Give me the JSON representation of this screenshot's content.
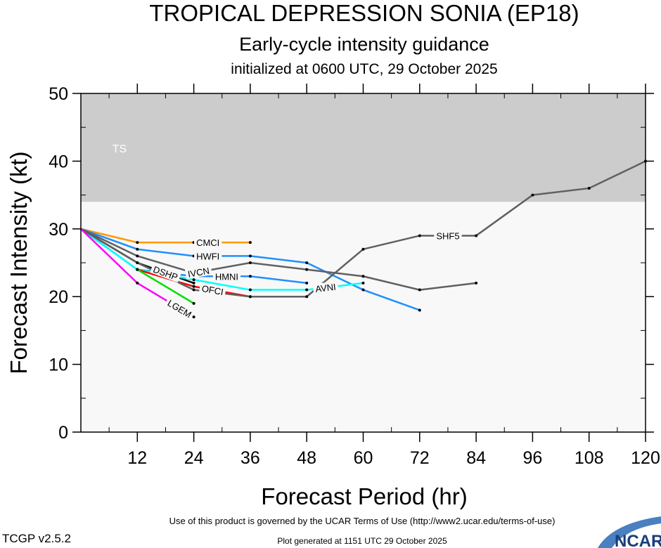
{
  "header": {
    "title": "TROPICAL DEPRESSION SONIA (EP18)",
    "subtitle": "Early-cycle intensity guidance",
    "init": "initialized at 0600 UTC, 29 October 2025"
  },
  "footer": {
    "terms": "Use of this product is governed by the UCAR Terms of Use (http://www2.ucar.edu/terms-of-use)",
    "version": "TCGP v2.5.2",
    "generated": "Plot generated at 1151 UTC   29 October 2025",
    "logo": "NCAR"
  },
  "chart_data": {
    "type": "line",
    "xlabel": "Forecast Period (hr)",
    "ylabel": "Forecast Intensity (kt)",
    "xlim": [
      0,
      120
    ],
    "ylim": [
      0,
      50
    ],
    "xticks": [
      12,
      24,
      36,
      48,
      60,
      72,
      84,
      96,
      108,
      120
    ],
    "yticks": [
      0,
      10,
      20,
      30,
      40,
      50
    ],
    "bands": [
      {
        "label": "TS",
        "from": 34,
        "to": 50,
        "color": "#cccccc"
      }
    ],
    "plot_bg": "#f8f8f8",
    "series": [
      {
        "name": "CMCI",
        "color": "#ff9900",
        "x": [
          0,
          12,
          24,
          36
        ],
        "y": [
          30,
          28,
          28,
          28
        ],
        "label_x": 27
      },
      {
        "name": "HWFI",
        "color": "#1e90ff",
        "x": [
          0,
          12,
          24,
          36,
          48,
          60,
          72
        ],
        "y": [
          30,
          27,
          26,
          26,
          25,
          21,
          18
        ],
        "label_x": 27
      },
      {
        "name": "IVCN",
        "color": "#606060",
        "x": [
          0,
          12,
          24,
          36,
          48,
          60,
          72,
          84
        ],
        "y": [
          30,
          26,
          23.5,
          25,
          24,
          23,
          21,
          22
        ],
        "label_x": 25
      },
      {
        "name": "HMNI",
        "color": "#1e90ff",
        "x": [
          0,
          12,
          24,
          36,
          48
        ],
        "y": [
          30,
          24,
          23,
          23,
          22
        ],
        "label_x": 25
      },
      {
        "name": "DSHP",
        "color": "#111111",
        "x": [
          0,
          12,
          24
        ],
        "y": [
          30,
          25,
          22
        ],
        "label_x": 24
      },
      {
        "name": "AVNI",
        "color": "#00ffff",
        "x": [
          0,
          12,
          24,
          36,
          48,
          60
        ],
        "y": [
          30,
          24,
          22.5,
          21,
          21,
          22
        ],
        "label_x": 52
      },
      {
        "name": "OFCI",
        "color": "#ff0000",
        "x": [
          12,
          24,
          36
        ],
        "y": [
          24,
          21.5,
          20
        ],
        "label_x": 25
      },
      {
        "name": "SHF5",
        "color": "#606060",
        "x": [
          0,
          12,
          24,
          36,
          48,
          60,
          72,
          84,
          96,
          108,
          120
        ],
        "y": [
          30,
          25,
          21,
          20,
          20,
          27,
          29,
          29,
          35,
          36,
          40
        ],
        "label_x": 78
      },
      {
        "name": "",
        "color": "#00dd00",
        "x": [
          12,
          24
        ],
        "y": [
          24,
          19
        ],
        "label_x": null
      },
      {
        "name": "LGEM",
        "color": "#ff00ff",
        "x": [
          0,
          12,
          24
        ],
        "y": [
          30,
          22,
          17
        ],
        "label_x": 21
      }
    ]
  }
}
